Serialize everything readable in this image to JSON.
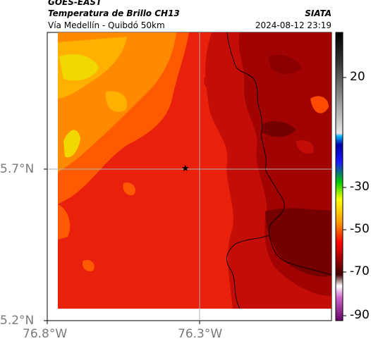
{
  "header": {
    "satellite": "GOES-EAST",
    "product": "Temperatura de Brillo CH13",
    "region": "Vía Medellín - Quibdó 50km",
    "organization": "SIATA",
    "timestamp": "2024-08-12 23:19"
  },
  "axes": {
    "lon_ticks": [
      "76.8°W",
      "76.3°W"
    ],
    "lat_ticks": [
      "5.7°N",
      "5.2°N"
    ]
  },
  "colorbar": {
    "ticks": [
      "20",
      "-30",
      "-50",
      "-70",
      "-90"
    ]
  },
  "marker": {
    "symbol": "★"
  },
  "colors": {
    "warm_orange": "#ff7a00",
    "red": "#e81a0a",
    "dark_red": "#8c0000",
    "yellow": "#e8e800"
  }
}
